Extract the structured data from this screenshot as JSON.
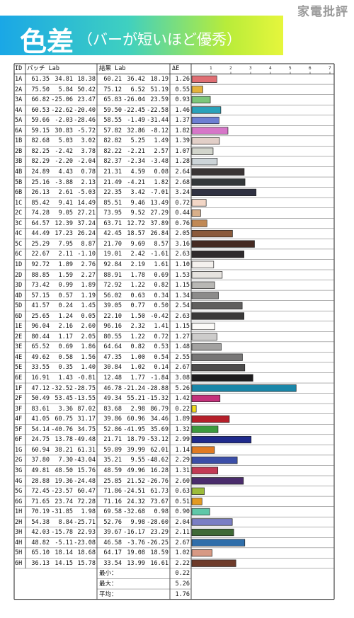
{
  "site_label": "家電批評",
  "banner": {
    "title": "色差",
    "subtitle": "（バーが短いほど優秀）"
  },
  "headers": {
    "id": "ID",
    "patch": "パッチ Lab",
    "result": "結果 Lab",
    "de": "ΔE"
  },
  "chart_data": {
    "type": "bar",
    "orientation": "horizontal",
    "x_ticks": [
      "1",
      "2",
      "3",
      "4",
      "5",
      "6",
      "7"
    ],
    "xlim": [
      0,
      7
    ],
    "rows": [
      {
        "id": "1A",
        "patch": [
          "61.35",
          "34.81",
          "18.38"
        ],
        "result": [
          "60.21",
          "36.42",
          "18.19"
        ],
        "de": 1.26,
        "color": "#e06e73"
      },
      {
        "id": "2A",
        "patch": [
          "75.50",
          "5.84",
          "50.42"
        ],
        "result": [
          "75.12",
          "6.52",
          "51.19"
        ],
        "de": 0.55,
        "color": "#e4b23c"
      },
      {
        "id": "3A",
        "patch": [
          "66.82",
          "-25.06",
          "23.47"
        ],
        "result": [
          "65.83",
          "-26.04",
          "23.59"
        ],
        "de": 0.93,
        "color": "#7cc67a"
      },
      {
        "id": "4A",
        "patch": [
          "60.53",
          "-22.62",
          "-20.40"
        ],
        "result": [
          "59.50",
          "-22.45",
          "-22.58"
        ],
        "de": 1.46,
        "color": "#2aa2ba"
      },
      {
        "id": "5A",
        "patch": [
          "59.66",
          "-2.03",
          "-28.46"
        ],
        "result": [
          "58.55",
          "-1.49",
          "-31.44"
        ],
        "de": 1.37,
        "color": "#6d7fd3"
      },
      {
        "id": "6A",
        "patch": [
          "59.15",
          "30.83",
          "-5.72"
        ],
        "result": [
          "57.82",
          "32.86",
          "-8.12"
        ],
        "de": 1.82,
        "color": "#d676c8"
      },
      {
        "id": "1B",
        "patch": [
          "82.68",
          "5.03",
          "3.02"
        ],
        "result": [
          "82.82",
          "5.25",
          "1.49"
        ],
        "de": 1.39,
        "color": "#e2cfc8"
      },
      {
        "id": "2B",
        "patch": [
          "82.25",
          "-2.42",
          "3.78"
        ],
        "result": [
          "82.22",
          "-2.21",
          "2.57"
        ],
        "de": 1.07,
        "color": "#d2d5cc"
      },
      {
        "id": "3B",
        "patch": [
          "82.29",
          "-2.20",
          "-2.04"
        ],
        "result": [
          "82.37",
          "-2.34",
          "-3.48"
        ],
        "de": 1.28,
        "color": "#ccd4d8"
      },
      {
        "id": "4B",
        "patch": [
          "24.89",
          "4.43",
          "0.78"
        ],
        "result": [
          "21.31",
          "4.59",
          "0.08"
        ],
        "de": 2.64,
        "color": "#3a3535"
      },
      {
        "id": "5B",
        "patch": [
          "25.16",
          "-3.88",
          "2.13"
        ],
        "result": [
          "21.49",
          "-4.21",
          "1.82"
        ],
        "de": 2.68,
        "color": "#33383a"
      },
      {
        "id": "6B",
        "patch": [
          "26.13",
          "2.61",
          "-5.03"
        ],
        "result": [
          "22.35",
          "3.42",
          "-7.01"
        ],
        "de": 3.24,
        "color": "#2f3142"
      },
      {
        "id": "1C",
        "patch": [
          "85.42",
          "9.41",
          "14.49"
        ],
        "result": [
          "85.51",
          "9.46",
          "13.49"
        ],
        "de": 0.72,
        "color": "#f2d6c6"
      },
      {
        "id": "2C",
        "patch": [
          "74.28",
          "9.05",
          "27.21"
        ],
        "result": [
          "73.95",
          "9.52",
          "27.29"
        ],
        "de": 0.44,
        "color": "#d8af8a"
      },
      {
        "id": "3C",
        "patch": [
          "64.57",
          "12.39",
          "37.24"
        ],
        "result": [
          "63.71",
          "12.72",
          "37.89"
        ],
        "de": 0.76,
        "color": "#c08955"
      },
      {
        "id": "4C",
        "patch": [
          "44.49",
          "17.23",
          "26.24"
        ],
        "result": [
          "42.45",
          "18.57",
          "26.84"
        ],
        "de": 2.05,
        "color": "#8a5a3b"
      },
      {
        "id": "5C",
        "patch": [
          "25.29",
          "7.95",
          "8.87"
        ],
        "result": [
          "21.70",
          "9.69",
          "8.57"
        ],
        "de": 3.16,
        "color": "#452a22"
      },
      {
        "id": "6C",
        "patch": [
          "22.67",
          "2.11",
          "-1.10"
        ],
        "result": [
          "19.01",
          "2.42",
          "-1.61"
        ],
        "de": 2.63,
        "color": "#2f2b2d"
      },
      {
        "id": "1D",
        "patch": [
          "92.72",
          "1.89",
          "2.76"
        ],
        "result": [
          "92.84",
          "2.19",
          "1.61"
        ],
        "de": 1.1,
        "color": "#f4f1ee"
      },
      {
        "id": "2D",
        "patch": [
          "88.85",
          "1.59",
          "2.27"
        ],
        "result": [
          "88.91",
          "1.78",
          "0.69"
        ],
        "de": 1.53,
        "color": "#e6e3df"
      },
      {
        "id": "3D",
        "patch": [
          "73.42",
          "0.99",
          "1.89"
        ],
        "result": [
          "72.92",
          "1.22",
          "0.82"
        ],
        "de": 1.15,
        "color": "#b8b7b4"
      },
      {
        "id": "4D",
        "patch": [
          "57.15",
          "0.57",
          "1.19"
        ],
        "result": [
          "56.02",
          "0.63",
          "0.34"
        ],
        "de": 1.34,
        "color": "#8c8b8a"
      },
      {
        "id": "5D",
        "patch": [
          "41.57",
          "0.24",
          "1.45"
        ],
        "result": [
          "39.05",
          "0.77",
          "0.50"
        ],
        "de": 2.54,
        "color": "#605f5e"
      },
      {
        "id": "6D",
        "patch": [
          "25.65",
          "1.24",
          "0.05"
        ],
        "result": [
          "22.10",
          "1.50",
          "-0.42"
        ],
        "de": 2.63,
        "color": "#3a3939"
      },
      {
        "id": "1E",
        "patch": [
          "96.04",
          "2.16",
          "2.60"
        ],
        "result": [
          "96.16",
          "2.32",
          "1.41"
        ],
        "de": 1.15,
        "color": "#fbfaf8"
      },
      {
        "id": "2E",
        "patch": [
          "80.44",
          "1.17",
          "2.05"
        ],
        "result": [
          "80.55",
          "1.22",
          "0.72"
        ],
        "de": 1.27,
        "color": "#cdcccb"
      },
      {
        "id": "3E",
        "patch": [
          "65.52",
          "0.69",
          "1.86"
        ],
        "result": [
          "64.64",
          "0.82",
          "0.53"
        ],
        "de": 1.48,
        "color": "#a2a1a0"
      },
      {
        "id": "4E",
        "patch": [
          "49.62",
          "0.58",
          "1.56"
        ],
        "result": [
          "47.35",
          "1.00",
          "0.54"
        ],
        "de": 2.55,
        "color": "#777676"
      },
      {
        "id": "5E",
        "patch": [
          "33.55",
          "0.35",
          "1.40"
        ],
        "result": [
          "30.84",
          "1.02",
          "0.14"
        ],
        "de": 2.67,
        "color": "#4d4c4c"
      },
      {
        "id": "6E",
        "patch": [
          "16.91",
          "1.43",
          "-0.81"
        ],
        "result": [
          "12.48",
          "1.77",
          "-1.84"
        ],
        "de": 3.08,
        "color": "#1d1c1e"
      },
      {
        "id": "1F",
        "patch": [
          "47.12",
          "-32.52",
          "-28.75"
        ],
        "result": [
          "46.78",
          "-21.24",
          "-28.88"
        ],
        "de": 5.26,
        "color": "#1a86a8"
      },
      {
        "id": "2F",
        "patch": [
          "50.49",
          "53.45",
          "-13.55"
        ],
        "result": [
          "49.34",
          "55.21",
          "-15.32"
        ],
        "de": 1.42,
        "color": "#c4307a"
      },
      {
        "id": "3F",
        "patch": [
          "83.61",
          "3.36",
          "87.02"
        ],
        "result": [
          "83.68",
          "2.98",
          "86.79"
        ],
        "de": 0.22,
        "color": "#f2da1c"
      },
      {
        "id": "4F",
        "patch": [
          "41.05",
          "60.75",
          "31.17"
        ],
        "result": [
          "39.86",
          "60.96",
          "34.46"
        ],
        "de": 1.89,
        "color": "#b51f2a"
      },
      {
        "id": "5F",
        "patch": [
          "54.14",
          "-40.76",
          "34.75"
        ],
        "result": [
          "52.86",
          "-41.95",
          "35.69"
        ],
        "de": 1.32,
        "color": "#3c9a3e"
      },
      {
        "id": "6F",
        "patch": [
          "24.75",
          "13.78",
          "-49.48"
        ],
        "result": [
          "21.71",
          "18.79",
          "-53.12"
        ],
        "de": 2.99,
        "color": "#1f2a8c"
      },
      {
        "id": "1G",
        "patch": [
          "60.94",
          "38.21",
          "61.31"
        ],
        "result": [
          "59.89",
          "39.99",
          "62.01"
        ],
        "de": 1.14,
        "color": "#e07a22"
      },
      {
        "id": "2G",
        "patch": [
          "37.80",
          "7.30",
          "-43.04"
        ],
        "result": [
          "35.21",
          "9.55",
          "-48.62"
        ],
        "de": 2.29,
        "color": "#3b4ea8"
      },
      {
        "id": "3G",
        "patch": [
          "49.81",
          "48.50",
          "15.76"
        ],
        "result": [
          "48.59",
          "49.96",
          "16.28"
        ],
        "de": 1.31,
        "color": "#c23a55"
      },
      {
        "id": "4G",
        "patch": [
          "28.88",
          "19.36",
          "-24.48"
        ],
        "result": [
          "25.85",
          "21.52",
          "-26.76"
        ],
        "de": 2.6,
        "color": "#4a2c6c"
      },
      {
        "id": "5G",
        "patch": [
          "72.45",
          "-23.57",
          "60.47"
        ],
        "result": [
          "71.86",
          "-24.51",
          "61.73"
        ],
        "de": 0.63,
        "color": "#9cbc3a"
      },
      {
        "id": "6G",
        "patch": [
          "71.65",
          "23.74",
          "72.28"
        ],
        "result": [
          "71.16",
          "24.32",
          "73.67"
        ],
        "de": 0.51,
        "color": "#e29a22"
      },
      {
        "id": "1H",
        "patch": [
          "70.19",
          "-31.85",
          "1.98"
        ],
        "result": [
          "69.58",
          "-32.68",
          "0.98"
        ],
        "de": 0.9,
        "color": "#5fc7a8"
      },
      {
        "id": "2H",
        "patch": [
          "54.38",
          "8.84",
          "-25.71"
        ],
        "result": [
          "52.76",
          "9.98",
          "-28.60"
        ],
        "de": 2.04,
        "color": "#7a7ec4"
      },
      {
        "id": "3H",
        "patch": [
          "42.03",
          "-15.78",
          "22.93"
        ],
        "result": [
          "39.67",
          "-16.17",
          "23.29"
        ],
        "de": 2.11,
        "color": "#3f6a36"
      },
      {
        "id": "4H",
        "patch": [
          "48.82",
          "-5.11",
          "-23.08"
        ],
        "result": [
          "46.58",
          "-3.76",
          "-26.25"
        ],
        "de": 2.67,
        "color": "#2f6eaa"
      },
      {
        "id": "5H",
        "patch": [
          "65.10",
          "18.14",
          "18.68"
        ],
        "result": [
          "64.17",
          "19.08",
          "18.59"
        ],
        "de": 1.02,
        "color": "#d79984"
      },
      {
        "id": "6H",
        "patch": [
          "36.13",
          "14.15",
          "15.78"
        ],
        "result": [
          "33.54",
          "13.99",
          "16.61"
        ],
        "de": 2.22,
        "color": "#6e3b2a"
      }
    ],
    "summary": [
      {
        "label": "最小：",
        "value": "0.22"
      },
      {
        "label": "最大：",
        "value": "5.26"
      },
      {
        "label": "平均：",
        "value": "1.76"
      }
    ]
  }
}
